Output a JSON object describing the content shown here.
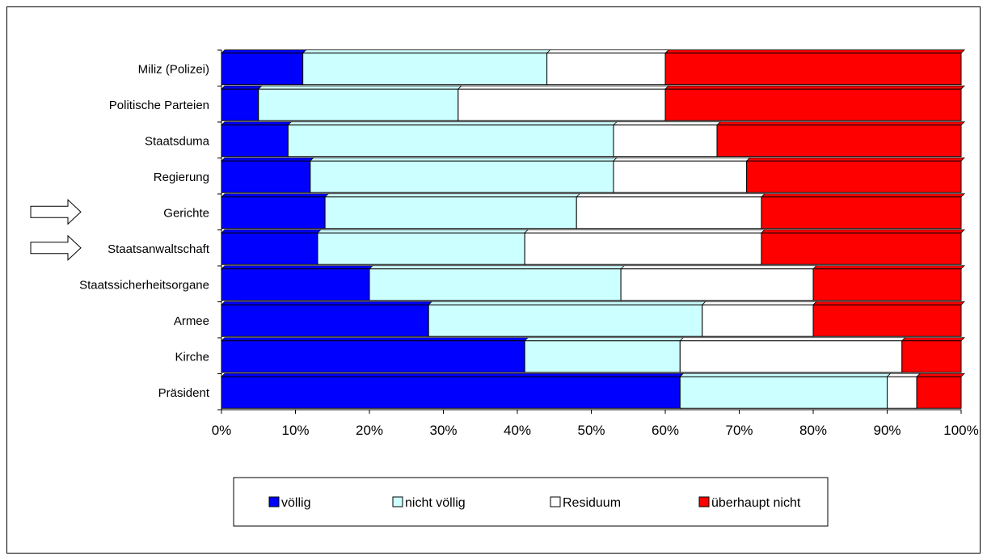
{
  "chart_data": {
    "type": "bar",
    "orientation": "horizontal",
    "stacked": "percent",
    "categories": [
      "Miliz (Polizei)",
      "Politische Parteien",
      "Staatsduma",
      "Regierung",
      "Gerichte",
      "Staatsanwaltschaft",
      "Staatssicherheitsorgane",
      "Armee",
      "Kirche",
      "Präsident"
    ],
    "series": [
      {
        "name": "völlig",
        "color": "#0000ff",
        "values": [
          11,
          5,
          9,
          12,
          14,
          13,
          20,
          28,
          41,
          62
        ]
      },
      {
        "name": "nicht völlig",
        "color": "#ccffff",
        "values": [
          33,
          27,
          44,
          41,
          34,
          28,
          34,
          37,
          21,
          28
        ]
      },
      {
        "name": "Residuum",
        "color": "#ffffff",
        "values": [
          16,
          28,
          14,
          18,
          25,
          32,
          26,
          15,
          30,
          4
        ]
      },
      {
        "name": "überhaupt nicht",
        "color": "#ff0000",
        "values": [
          40,
          40,
          33,
          29,
          27,
          27,
          20,
          20,
          8,
          6
        ]
      }
    ],
    "xlim": [
      0,
      100
    ],
    "xticks": [
      "0%",
      "10%",
      "20%",
      "30%",
      "40%",
      "50%",
      "60%",
      "70%",
      "80%",
      "90%",
      "100%"
    ],
    "grid": false,
    "legend_position": "bottom",
    "annotations": [
      {
        "type": "arrow-icon",
        "category": "Gerichte"
      },
      {
        "type": "arrow-icon",
        "category": "Staatsanwaltschaft"
      }
    ]
  }
}
